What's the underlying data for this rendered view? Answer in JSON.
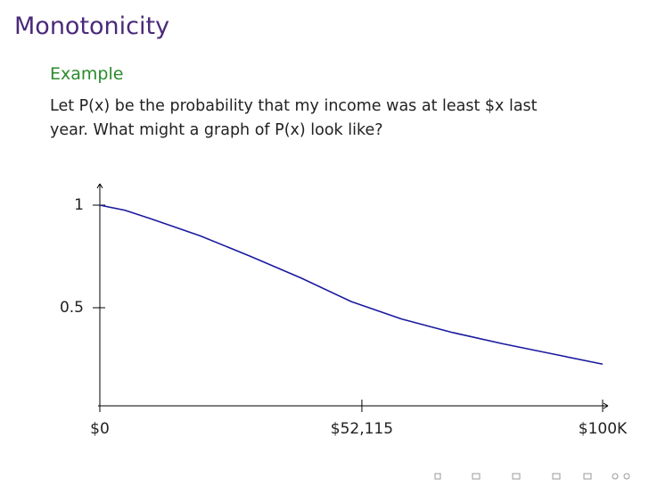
{
  "slide": {
    "title": "Monotonicity",
    "block_title": "Example",
    "body": "Let P(x) be the probability that my income was at least $x last year. What might a graph of P(x) look like?"
  },
  "chart_data": {
    "type": "line",
    "x": [
      0,
      5000,
      10000,
      20000,
      30000,
      40000,
      50000,
      60000,
      70000,
      80000,
      90000,
      100000
    ],
    "values": [
      1.0,
      0.975,
      0.935,
      0.85,
      0.75,
      0.645,
      0.53,
      0.445,
      0.38,
      0.325,
      0.275,
      0.225
    ],
    "color": "#1a1aa0",
    "xlim": [
      0,
      100000
    ],
    "ylim": [
      0,
      1.1
    ],
    "xticks": [
      {
        "value": 0,
        "label": "$0"
      },
      {
        "value": 52115,
        "label": "$52,115"
      },
      {
        "value": 100000,
        "label": "$100K"
      }
    ],
    "yticks": [
      0.5,
      1
    ]
  }
}
